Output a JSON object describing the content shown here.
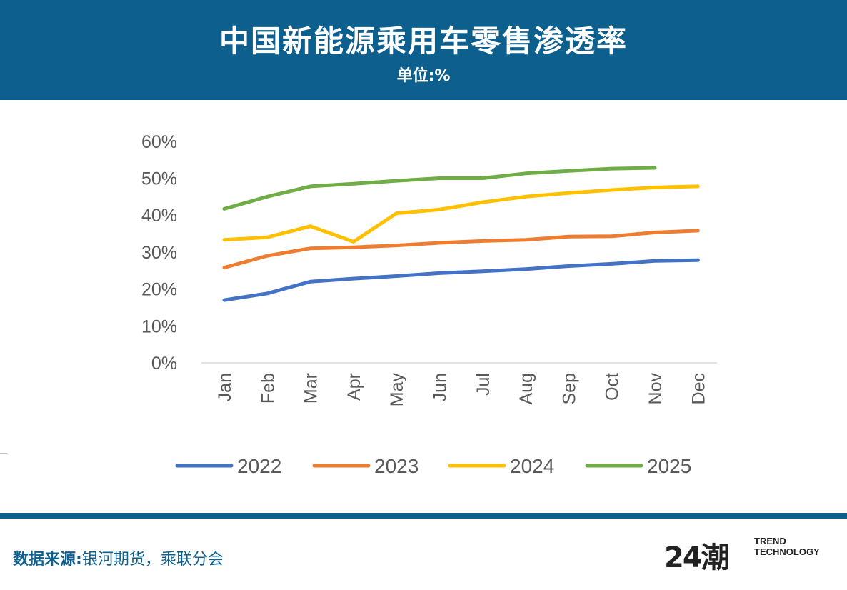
{
  "header": {
    "title": "中国新能源乘用车零售渗透率",
    "subtitle": "单位:%"
  },
  "footer": {
    "source_label": "数据来源:",
    "source_value": "银河期货，乘联分会",
    "logo_num": "24潮",
    "logo_line1": "TREND",
    "logo_line2": "TECHNOLOGY"
  },
  "colors": {
    "header_bg": "#0d5f8d",
    "series_2022": "#4472c4",
    "series_2023": "#ed7d31",
    "series_2024": "#ffc000",
    "series_2025": "#70ad47"
  },
  "chart_data": {
    "type": "line",
    "title": "中国新能源乘用车零售渗透率",
    "subtitle": "单位:%",
    "categories": [
      "Jan",
      "Feb",
      "Mar",
      "Apr",
      "May",
      "Jun",
      "Jul",
      "Aug",
      "Sep",
      "Oct",
      "Nov",
      "Dec"
    ],
    "yticks": [
      "0%",
      "10%",
      "20%",
      "30%",
      "40%",
      "50%",
      "60%"
    ],
    "ylim": [
      0,
      60
    ],
    "grid": false,
    "legend_position": "bottom",
    "series": [
      {
        "name": "2022",
        "color": "#4472c4",
        "values": [
          17.0,
          18.8,
          22.0,
          22.8,
          23.5,
          24.3,
          24.8,
          25.4,
          26.2,
          26.8,
          27.6,
          27.8
        ]
      },
      {
        "name": "2023",
        "color": "#ed7d31",
        "values": [
          25.8,
          29.0,
          31.0,
          31.3,
          31.8,
          32.5,
          33.0,
          33.3,
          34.2,
          34.3,
          35.3,
          35.8
        ]
      },
      {
        "name": "2024",
        "color": "#ffc000",
        "values": [
          33.3,
          34.0,
          37.0,
          32.8,
          40.5,
          41.5,
          43.5,
          45.0,
          46.0,
          46.8,
          47.5,
          47.8
        ]
      },
      {
        "name": "2025",
        "color": "#70ad47",
        "values": [
          41.7,
          45.0,
          47.8,
          48.5,
          49.3,
          50.0,
          50.0,
          51.3,
          52.0,
          52.6,
          52.8,
          null
        ]
      }
    ]
  }
}
